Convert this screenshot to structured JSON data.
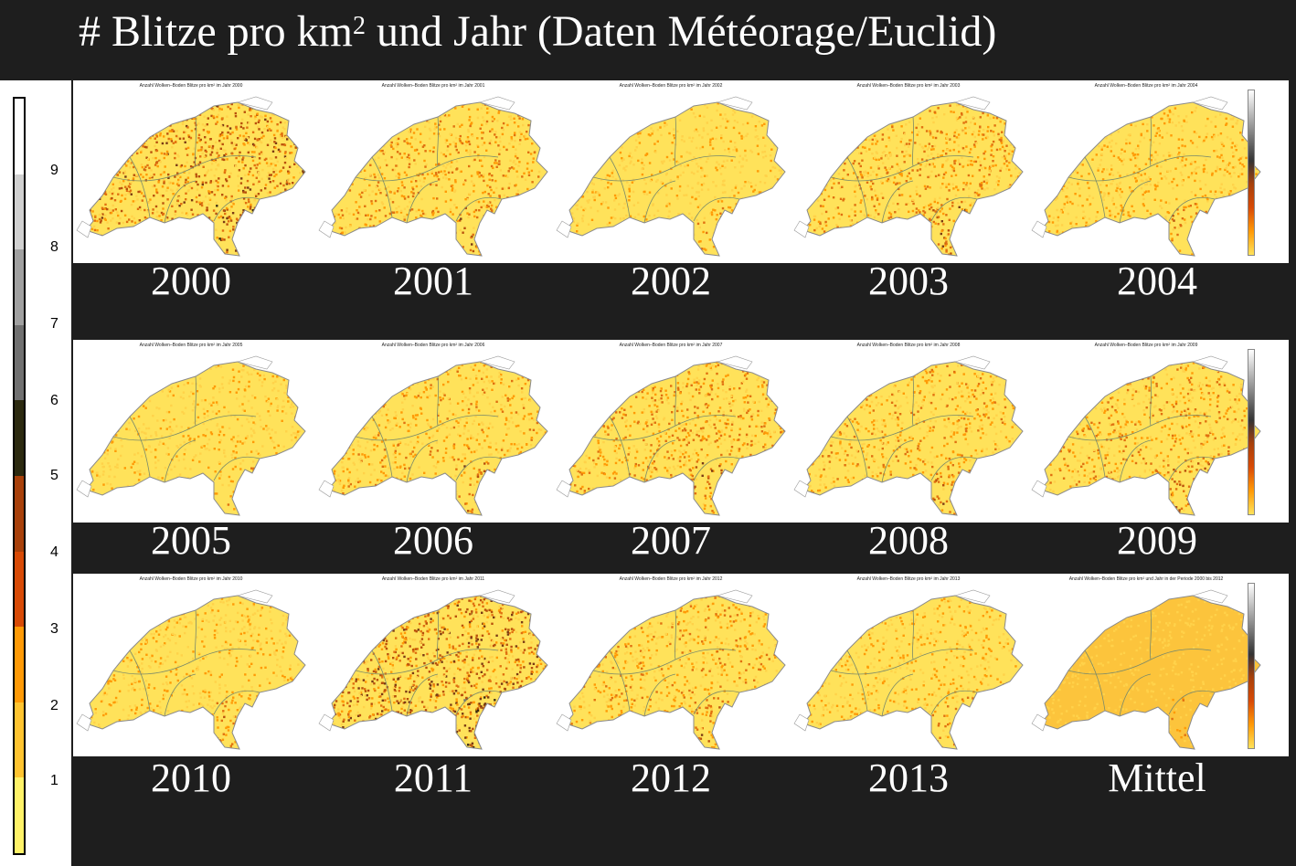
{
  "header": {
    "title_main": "# Blitze pro km",
    "title_sup": "2",
    "title_rest": " und Jahr (Daten Météorage/Euclid)"
  },
  "scale": {
    "labels": [
      "9",
      "8",
      "7",
      "6",
      "5",
      "4",
      "3",
      "2",
      "1"
    ],
    "colors": [
      "#ffffff",
      "#d0d0d0",
      "#a0a0a0",
      "#707070",
      "#2c2a10",
      "#a8400a",
      "#d84a06",
      "#ff9a06",
      "#ffc430",
      "#fff268"
    ]
  },
  "panels": [
    {
      "label": "2000",
      "title": "Anzahl Wolken–Boden Blitze pro km² im Jahr 2000",
      "density": 0.85
    },
    {
      "label": "2001",
      "title": "Anzahl Wolken–Boden Blitze pro km² im Jahr 2001",
      "density": 0.55
    },
    {
      "label": "2002",
      "title": "Anzahl Wolken–Boden Blitze pro km² im Jahr 2002",
      "density": 0.3
    },
    {
      "label": "2003",
      "title": "Anzahl Wolken–Boden Blitze pro km² im Jahr 2003",
      "density": 0.6
    },
    {
      "label": "2004",
      "title": "Anzahl Wolken–Boden Blitze pro km² im Jahr 2004",
      "density": 0.4
    },
    {
      "label": "2005",
      "title": "Anzahl Wolken–Boden Blitze pro km² im Jahr 2005",
      "density": 0.3
    },
    {
      "label": "2006",
      "title": "Anzahl Wolken–Boden Blitze pro km² im Jahr 2006",
      "density": 0.45
    },
    {
      "label": "2007",
      "title": "Anzahl Wolken–Boden Blitze pro km² im Jahr 2007",
      "density": 0.6
    },
    {
      "label": "2008",
      "title": "Anzahl Wolken–Boden Blitze pro km² im Jahr 2008",
      "density": 0.5
    },
    {
      "label": "2009",
      "title": "Anzahl Wolken–Boden Blitze pro km² im Jahr 2009",
      "density": 0.55
    },
    {
      "label": "2010",
      "title": "Anzahl Wolken–Boden Blitze pro km² im Jahr 2010",
      "density": 0.35
    },
    {
      "label": "2011",
      "title": "Anzahl Wolken–Boden Blitze pro km² im Jahr 2011",
      "density": 0.9
    },
    {
      "label": "2012",
      "title": "Anzahl Wolken–Boden Blitze pro km² im Jahr 2012",
      "density": 0.5
    },
    {
      "label": "2013",
      "title": "Anzahl Wolken–Boden Blitze pro km² im Jahr 2013",
      "density": 0.35
    },
    {
      "label": "Mittel",
      "title": "Anzahl Wolken–Boden Blitze pro km² und Jahr in der Periode 2000 bis 2012",
      "density": 0.2
    }
  ]
}
